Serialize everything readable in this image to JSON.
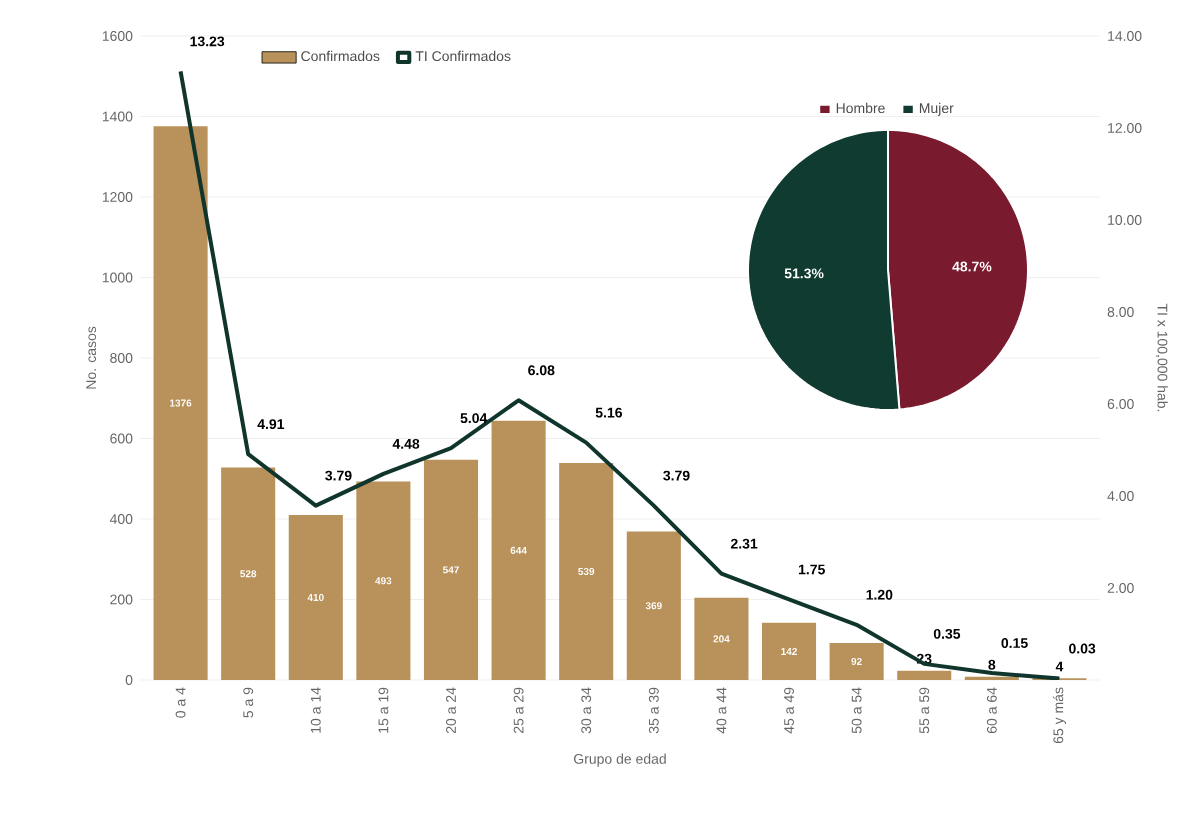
{
  "chart_data": [
    {
      "type": "bar",
      "xlabel": "Grupo de edad",
      "ylabel": "No. casos",
      "y2label": "TI x 100,000 hab.",
      "categories": [
        "0 a 4",
        "5 a 9",
        "10 a 14",
        "15 a 19",
        "20 a 24",
        "25 a 29",
        "30 a 34",
        "35 a 39",
        "40 a 44",
        "45 a 49",
        "50 a 54",
        "55 a 59",
        "60 a 64",
        "65 y más"
      ],
      "series": [
        {
          "name": "Confirmados",
          "type": "bar",
          "color": "#b8925a",
          "values": [
            1376,
            528,
            410,
            493,
            547,
            644,
            539,
            369,
            204,
            142,
            92,
            23,
            8,
            4
          ],
          "value_labels": [
            "1376",
            "528",
            "410",
            "493",
            "547",
            "644",
            "539",
            "369",
            "204",
            "142",
            "92",
            "23",
            "8",
            "4"
          ]
        },
        {
          "name": "TI Confirmados",
          "type": "line",
          "axis": "y2",
          "color": "#10352c",
          "values": [
            13.23,
            4.91,
            3.79,
            4.48,
            5.04,
            6.08,
            5.16,
            3.79,
            2.31,
            1.75,
            1.2,
            0.35,
            0.15,
            0.03
          ],
          "value_labels": [
            "13.23",
            "4.91",
            "3.79",
            "4.48",
            "5.04",
            "6.08",
            "5.16",
            "3.79",
            "2.31",
            "1.75",
            "1.20",
            "0.35",
            "0.15",
            "0.03"
          ]
        }
      ],
      "ylim": [
        0,
        1600
      ],
      "yticks": [
        0,
        200,
        400,
        600,
        800,
        1000,
        1200,
        1400,
        1600
      ],
      "y2lim": [
        0,
        14
      ],
      "y2ticks": [
        {
          "value": 0,
          "label": null
        },
        {
          "value": 2,
          "label": "2.00"
        },
        {
          "value": 4,
          "label": "4.00"
        },
        {
          "value": 6,
          "label": "6.00"
        },
        {
          "value": 8,
          "label": "8.00"
        },
        {
          "value": 10,
          "label": "10.00"
        },
        {
          "value": 12,
          "label": "12.00"
        },
        {
          "value": 14,
          "label": "14.00"
        }
      ],
      "grid": "y",
      "legend": "top left",
      "marker": "none"
    },
    {
      "type": "pie",
      "categories": [
        "Hombre",
        "Mujer"
      ],
      "values": [
        48.7,
        51.3
      ],
      "colors": [
        "#7a1a2e",
        "#0f3b30"
      ],
      "value_labels": [
        "48.7%",
        "51.3%"
      ],
      "legend": "top"
    }
  ]
}
